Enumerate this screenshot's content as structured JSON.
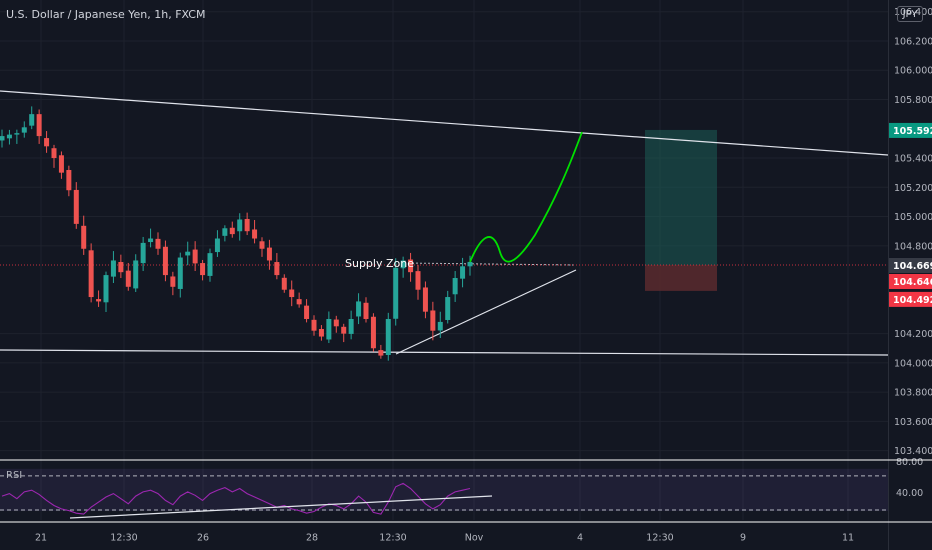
{
  "header": {
    "title": "U.S. Dollar / Japanese Yen, 1h, FXCM",
    "currency": "JPY"
  },
  "colors": {
    "background": "#131722",
    "up": "#26a69a",
    "down": "#ef5350",
    "rsi": "#9c27b0",
    "projection": "#00e000",
    "long_target_zone": "#1b5c55",
    "long_stop_zone": "#5a2a2e"
  },
  "chart_data": {
    "type": "candlestick",
    "title": "U.S. Dollar / Japanese Yen, 1h, FXCM",
    "y_ticks": [
      {
        "value": 106.4,
        "label": "106.400"
      },
      {
        "value": 106.2,
        "label": "106.200"
      },
      {
        "value": 106.0,
        "label": "106.000"
      },
      {
        "value": 105.8,
        "label": "105.800"
      },
      {
        "value": 105.4,
        "label": "105.400"
      },
      {
        "value": 105.2,
        "label": "105.200"
      },
      {
        "value": 105.0,
        "label": "105.000"
      },
      {
        "value": 104.8,
        "label": "104.800"
      },
      {
        "value": 104.2,
        "label": "104.200"
      },
      {
        "value": 104.0,
        "label": "104.000"
      },
      {
        "value": 103.8,
        "label": "103.800"
      },
      {
        "value": 103.6,
        "label": "103.600"
      },
      {
        "value": 103.4,
        "label": "103.400"
      }
    ],
    "x_ticks": [
      "21",
      "12:30",
      "26",
      "28",
      "12:30",
      "Nov",
      "4",
      "12:30",
      "9",
      "11"
    ],
    "price_labels": [
      {
        "value": 105.592,
        "label": "105.592",
        "color": "#089981"
      },
      {
        "value": 104.669,
        "label": "104.669",
        "color": "#363a45"
      },
      {
        "value": 104.646,
        "label": "104.646",
        "color": "#f23645"
      },
      {
        "value": 104.492,
        "label": "104.492",
        "color": "#f23645"
      }
    ],
    "annotations": [
      {
        "text": "Supply Zone",
        "value": 104.69
      }
    ],
    "price_path": [
      [
        0,
        105.55
      ],
      [
        2,
        105.57
      ],
      [
        3,
        105.61
      ],
      [
        4,
        105.7
      ],
      [
        5,
        105.55
      ],
      [
        6,
        105.48
      ],
      [
        7,
        105.4
      ],
      [
        8,
        105.3
      ],
      [
        9,
        105.18
      ],
      [
        10,
        104.95
      ],
      [
        11,
        104.78
      ],
      [
        12,
        104.45
      ],
      [
        13,
        104.42
      ],
      [
        14,
        104.6
      ],
      [
        15,
        104.7
      ],
      [
        16,
        104.62
      ],
      [
        17,
        104.52
      ],
      [
        18,
        104.7
      ],
      [
        19,
        104.82
      ],
      [
        20,
        104.85
      ],
      [
        21,
        104.78
      ],
      [
        22,
        104.6
      ],
      [
        23,
        104.52
      ],
      [
        24,
        104.72
      ],
      [
        25,
        104.76
      ],
      [
        26,
        104.68
      ],
      [
        27,
        104.6
      ],
      [
        28,
        104.75
      ],
      [
        29,
        104.85
      ],
      [
        30,
        104.92
      ],
      [
        31,
        104.88
      ],
      [
        32,
        104.98
      ],
      [
        33,
        104.9
      ],
      [
        34,
        104.85
      ],
      [
        35,
        104.78
      ],
      [
        36,
        104.7
      ],
      [
        37,
        104.6
      ],
      [
        38,
        104.5
      ],
      [
        39,
        104.45
      ],
      [
        40,
        104.4
      ],
      [
        41,
        104.3
      ],
      [
        42,
        104.22
      ],
      [
        43,
        104.18
      ],
      [
        44,
        104.3
      ],
      [
        45,
        104.25
      ],
      [
        46,
        104.2
      ],
      [
        47,
        104.3
      ],
      [
        48,
        104.42
      ],
      [
        49,
        104.3
      ],
      [
        50,
        104.1
      ],
      [
        51,
        104.05
      ],
      [
        52,
        104.3
      ],
      [
        53,
        104.65
      ],
      [
        54,
        104.7
      ],
      [
        55,
        104.62
      ],
      [
        56,
        104.5
      ],
      [
        57,
        104.35
      ],
      [
        58,
        104.22
      ],
      [
        59,
        104.28
      ],
      [
        60,
        104.45
      ],
      [
        61,
        104.58
      ],
      [
        62,
        104.66
      ],
      [
        63,
        104.69
      ]
    ],
    "candle_count": 64,
    "rsi_ticks": [
      {
        "value": 80,
        "label": "80.00"
      },
      {
        "value": 40,
        "label": "40.00"
      }
    ],
    "rsi_series": [
      {
        "name": "RSI",
        "values": [
          55,
          58,
          52,
          60,
          62,
          57,
          50,
          44,
          40,
          38,
          35,
          34,
          42,
          48,
          54,
          58,
          52,
          46,
          55,
          60,
          62,
          58,
          50,
          45,
          55,
          60,
          56,
          50,
          58,
          62,
          65,
          60,
          64,
          58,
          54,
          50,
          46,
          42,
          44,
          40,
          38,
          35,
          37,
          42,
          46,
          44,
          40,
          46,
          55,
          48,
          36,
          34,
          48,
          66,
          70,
          64,
          55,
          46,
          40,
          45,
          55,
          60,
          62,
          64
        ]
      }
    ]
  },
  "panels": {
    "rsi_label": "RSI"
  }
}
